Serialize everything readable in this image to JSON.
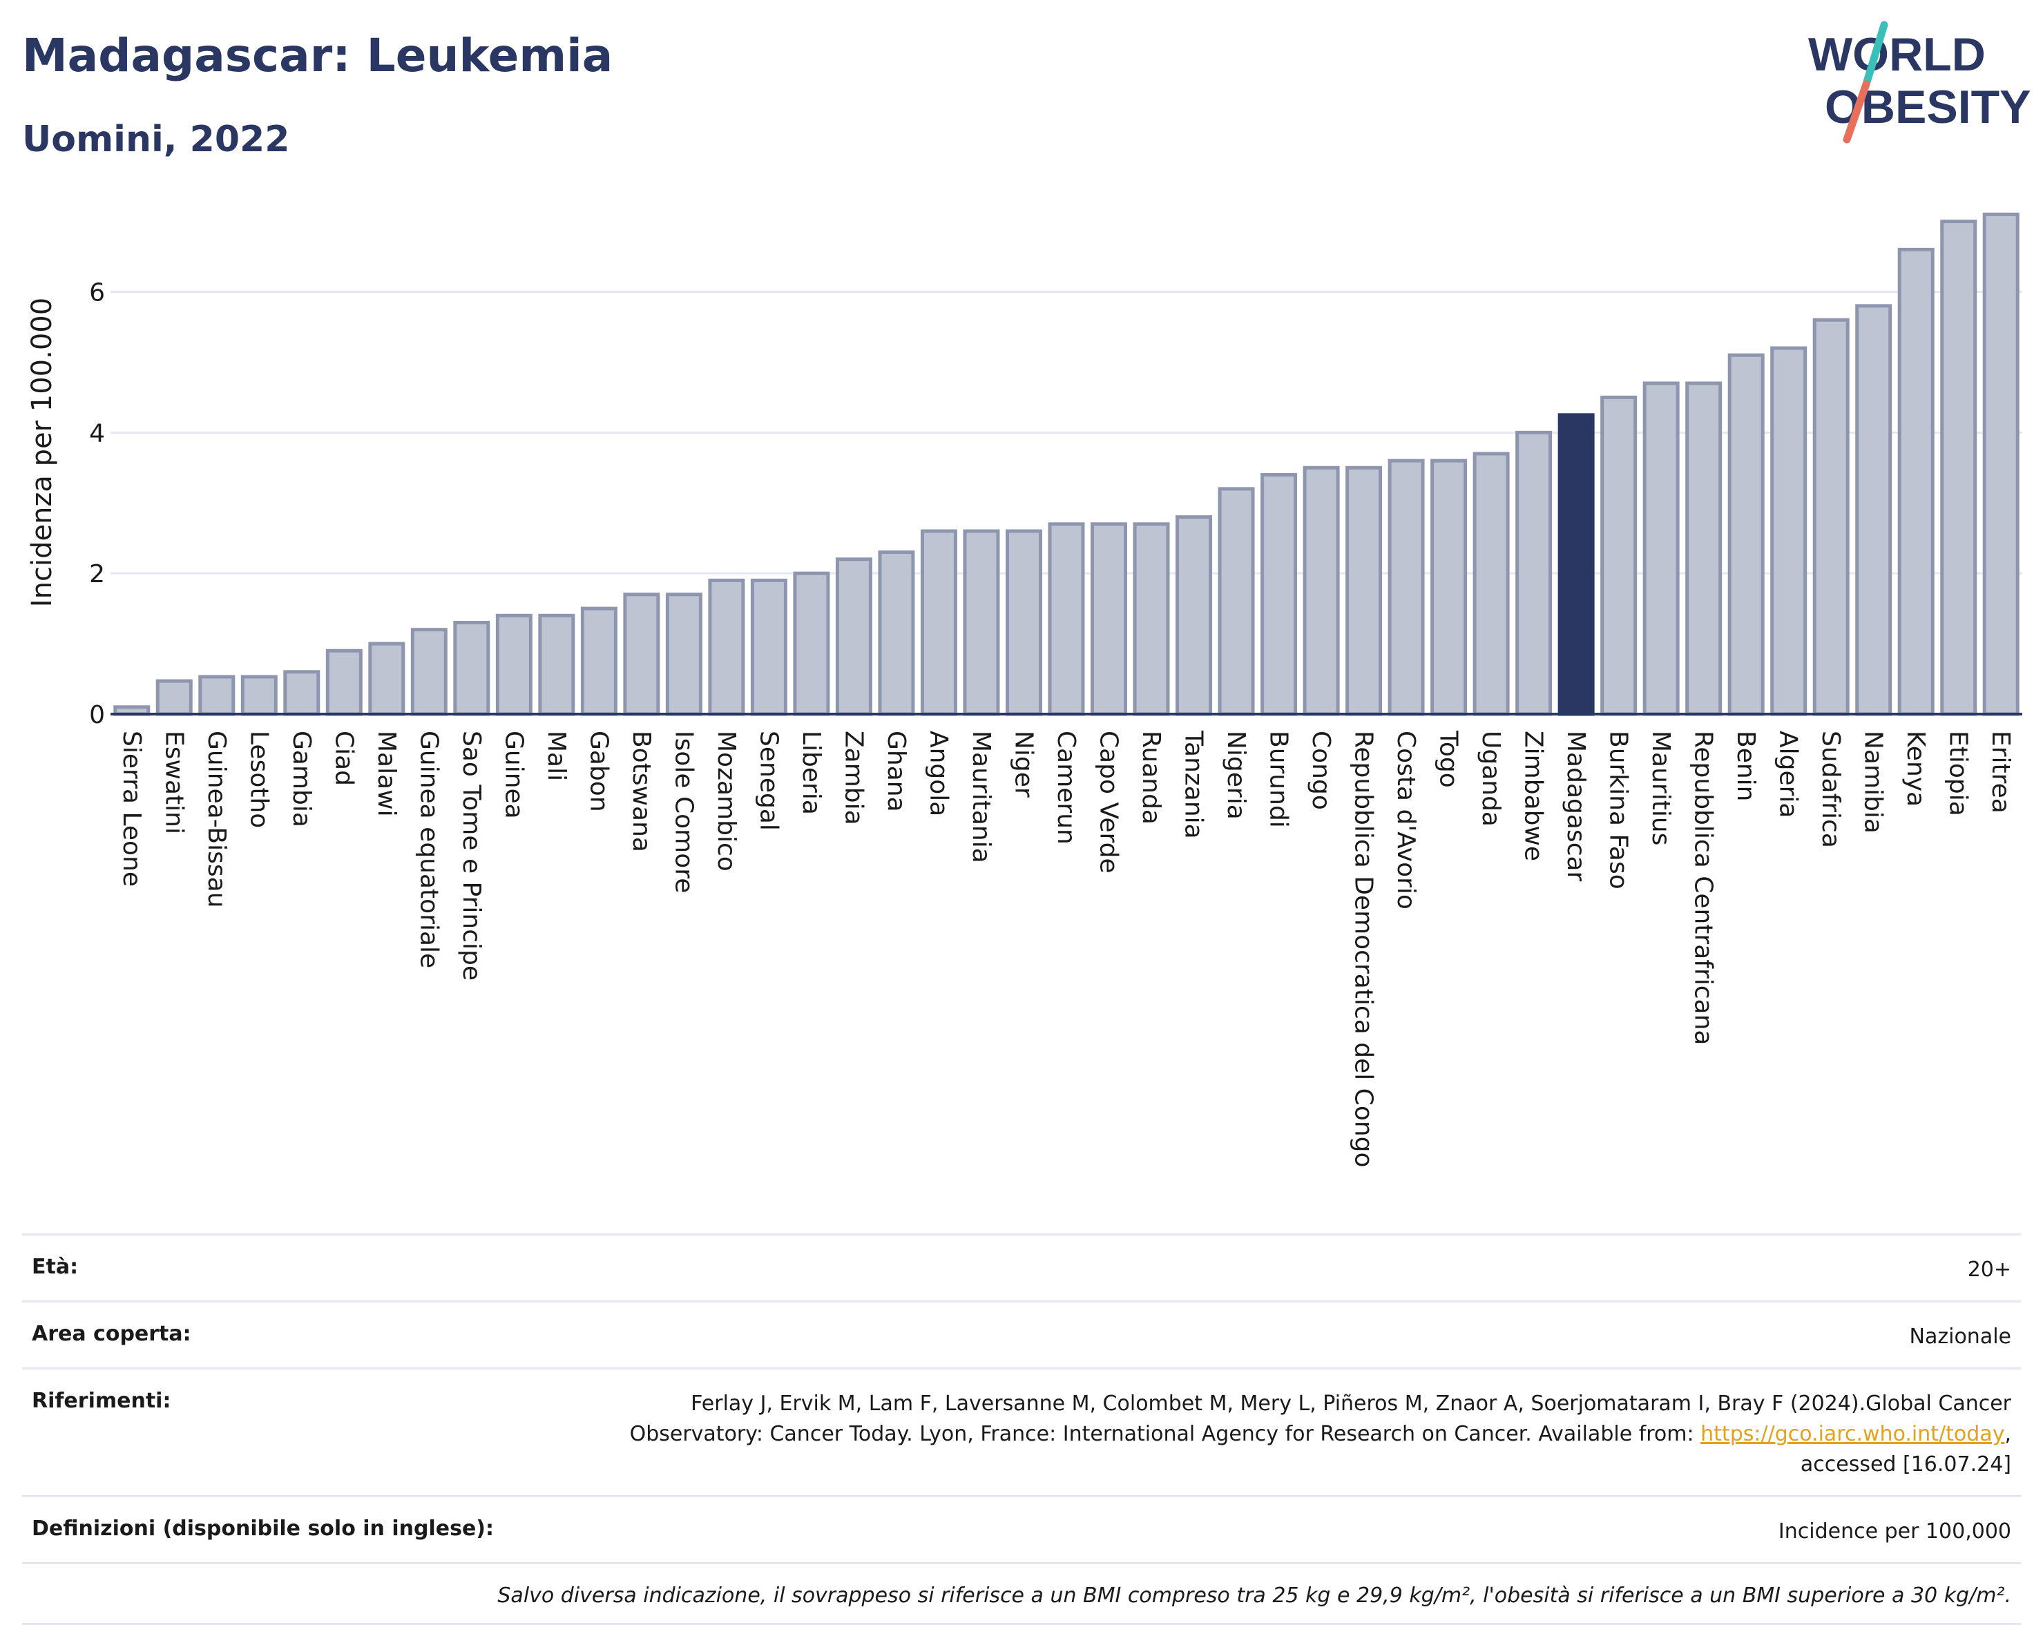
{
  "header": {
    "title": "Madagascar: Leukemia",
    "subtitle": "Uomini, 2022"
  },
  "logo": {
    "line1": "WORLD",
    "line2": "OBESITY",
    "colors": {
      "text": "#2b3763",
      "slash_top": "#3bbfb9",
      "slash_bottom": "#e8705a"
    }
  },
  "chart_data": {
    "type": "bar",
    "ylabel": "Incidenza per 100.000",
    "xlabel": "",
    "ylim": [
      0,
      7.3
    ],
    "yticks": [
      0,
      2,
      4,
      6
    ],
    "grid": true,
    "highlight": "Madagascar",
    "colors": {
      "bar": "#bfc4d3",
      "bar_border": "#8e95af",
      "highlight": "#2b3763",
      "axis": "#2b3763",
      "grid": "#e6e8ef"
    },
    "categories": [
      "Sierra Leone",
      "Eswatini",
      "Guinea-Bissau",
      "Lesotho",
      "Gambia",
      "Ciad",
      "Malawi",
      "Guinea equatoriale",
      "Sao Tome e Principe",
      "Guinea",
      "Mali",
      "Gabon",
      "Botswana",
      "Isole Comore",
      "Mozambico",
      "Senegal",
      "Liberia",
      "Zambia",
      "Ghana",
      "Angola",
      "Mauritania",
      "Niger",
      "Camerun",
      "Capo Verde",
      "Ruanda",
      "Tanzania",
      "Nigeria",
      "Burundi",
      "Congo",
      "Repubblica Democratica del Congo",
      "Costa d'Avorio",
      "Togo",
      "Uganda",
      "Zimbabwe",
      "Madagascar",
      "Burkina Faso",
      "Mauritius",
      "Repubblica Centrafricana",
      "Benin",
      "Algeria",
      "Sudafrica",
      "Namibia",
      "Kenya",
      "Etiopia",
      "Eritrea"
    ],
    "values": [
      0.1,
      0.47,
      0.53,
      0.53,
      0.6,
      0.9,
      1.0,
      1.2,
      1.3,
      1.4,
      1.4,
      1.5,
      1.7,
      1.7,
      1.9,
      1.9,
      2.0,
      2.2,
      2.3,
      2.6,
      2.6,
      2.6,
      2.7,
      2.7,
      2.7,
      2.8,
      3.2,
      3.4,
      3.5,
      3.5,
      3.6,
      3.6,
      3.7,
      4.0,
      4.25,
      4.5,
      4.7,
      4.7,
      5.1,
      5.2,
      5.6,
      5.8,
      6.6,
      7.0,
      7.1
    ]
  },
  "info": {
    "age_label": "Età:",
    "age_value": "20+",
    "area_label": "Area coperta:",
    "area_value": "Nazionale",
    "refs_label": "Riferimenti:",
    "refs_line1": "Ferlay J, Ervik M, Lam F, Laversanne M, Colombet M, Mery L, Piñeros M, Znaor A, Soerjomataram I, Bray F (2024).Global Cancer",
    "refs_line2": "Observatory: Cancer Today. Lyon, France: International Agency for Research on Cancer. Available from: ",
    "refs_link": "https://gco.iarc.who.int/today",
    "refs_line2_end": ",",
    "refs_line3": "accessed [16.07.24]",
    "defs_label": "Definizioni (disponibile solo in inglese):",
    "defs_value": "Incidence per 100,000",
    "note": "Salvo diversa indicazione, il sovrappeso si riferisce a un BMI compreso tra 25 kg e 29,9 kg/m², l'obesità si riferisce a un BMI superiore a 30 kg/m²."
  }
}
